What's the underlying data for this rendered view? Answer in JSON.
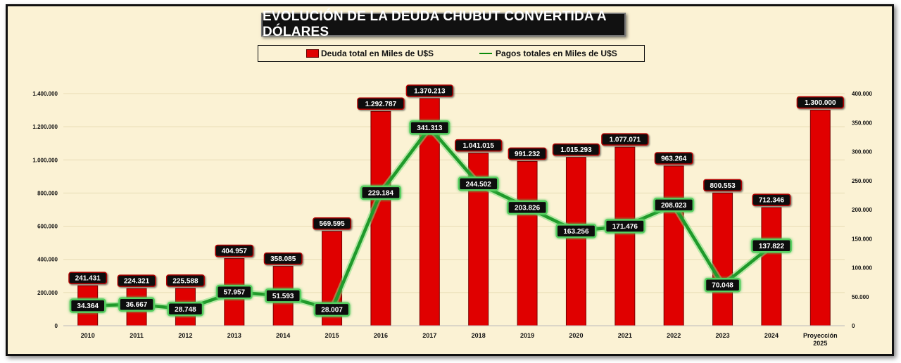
{
  "chart_data": {
    "type": "bar",
    "title": "EVOLUCIÓN DE LA DEUDA CHUBUT CONVERTIDA A DÓLARES",
    "categories": [
      "2010",
      "2011",
      "2012",
      "2013",
      "2014",
      "2015",
      "2016",
      "2017",
      "2018",
      "2019",
      "2020",
      "2021",
      "2022",
      "2023",
      "2024",
      "Proyección 2025"
    ],
    "series": [
      {
        "name": "Deuda total en Miles de U$S",
        "type": "bar",
        "axis": "left",
        "color": "#e00000",
        "values": [
          241431,
          224321,
          225588,
          404957,
          358085,
          569595,
          1292787,
          1370213,
          1041015,
          991232,
          1015293,
          1077071,
          963264,
          800553,
          712346,
          1300000
        ],
        "labels": [
          "241.431",
          "224.321",
          "225.588",
          "404.957",
          "358.085",
          "569.595",
          "1.292.787",
          "1.370.213",
          "1.041.015",
          "991.232",
          "1.015.293",
          "1.077.071",
          "963.264",
          "800.553",
          "712.346",
          "1.300.000"
        ]
      },
      {
        "name": "Pagos totales en Miles de U$S",
        "type": "line",
        "axis": "right",
        "color": "#0a8a0a",
        "values": [
          34364,
          36667,
          28748,
          57957,
          51593,
          28007,
          229184,
          341313,
          244502,
          203826,
          163256,
          171476,
          208023,
          70048,
          137822,
          null
        ],
        "labels": [
          "34.364",
          "36.667",
          "28.748",
          "57.957",
          "51.593",
          "28.007",
          "229.184",
          "341.313",
          "244.502",
          "203.826",
          "163.256",
          "171.476",
          "208.023",
          "70.048",
          "137.822",
          ""
        ]
      }
    ],
    "y_left": {
      "min": 0,
      "max": 1400000,
      "ticks": [
        0,
        200000,
        400000,
        600000,
        800000,
        1000000,
        1200000,
        1400000
      ],
      "tick_labels": [
        "0",
        "200.000",
        "400.000",
        "600.000",
        "800.000",
        "1.000.000",
        "1.200.000",
        "1.400.000"
      ]
    },
    "y_right": {
      "min": 0,
      "max": 400000,
      "ticks": [
        0,
        50000,
        100000,
        150000,
        200000,
        250000,
        300000,
        350000,
        400000
      ],
      "tick_labels": [
        "0",
        "50.000",
        "100.000",
        "150.000",
        "200.000",
        "250.000",
        "300.000",
        "350.000",
        "400.000"
      ]
    },
    "grid": true,
    "legend_position": "top"
  }
}
